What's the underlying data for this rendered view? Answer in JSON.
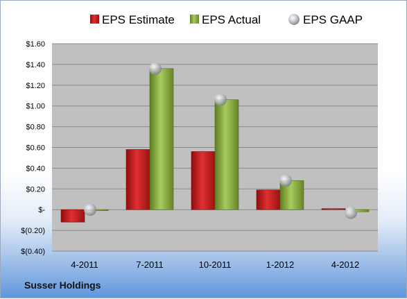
{
  "company": "Susser Holdings",
  "colors": {
    "estimate": "#cc1f1f",
    "actual": "#8cb043",
    "gaap": "#b8bcc2",
    "plot_bg": "#c0c0c0"
  },
  "chart_data": {
    "type": "bar",
    "categories": [
      "4-2011",
      "7-2011",
      "10-2011",
      "1-2012",
      "4-2012"
    ],
    "series": [
      {
        "name": "EPS Estimate",
        "kind": "bar",
        "values": [
          -0.12,
          0.58,
          0.56,
          0.19,
          0.01
        ]
      },
      {
        "name": "EPS Actual",
        "kind": "bar",
        "values": [
          0.0,
          1.36,
          1.06,
          0.28,
          -0.02
        ]
      },
      {
        "name": "EPS GAAP",
        "kind": "marker",
        "values": [
          0.0,
          1.36,
          1.06,
          0.28,
          -0.03
        ]
      }
    ],
    "ylim": [
      -0.4,
      1.6
    ],
    "yticks": [
      -0.4,
      -0.2,
      0,
      0.2,
      0.4,
      0.6,
      0.8,
      1.0,
      1.2,
      1.4,
      1.6
    ],
    "ytick_labels": [
      "$(0.40)",
      "$(0.20)",
      "$-",
      "$0.20",
      "$0.40",
      "$0.60",
      "$0.80",
      "$1.00",
      "$1.20",
      "$1.40",
      "$1.60"
    ],
    "grid": true,
    "legend_position": "top"
  }
}
